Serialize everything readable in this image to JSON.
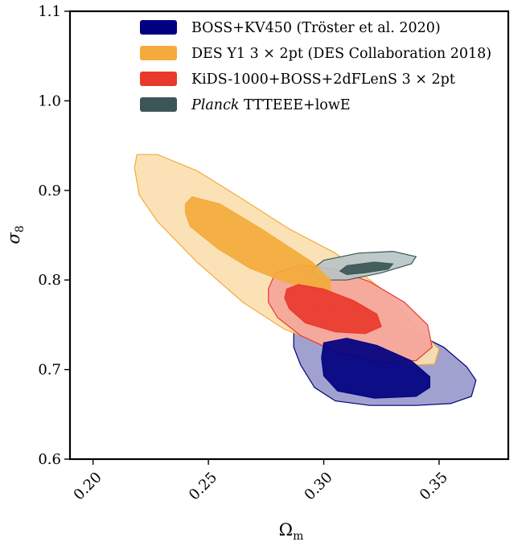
{
  "chart_data": {
    "type": "contour",
    "xlabel_main": "Ω",
    "xlabel_sub": "m",
    "ylabel_main": "σ",
    "ylabel_sub": "8",
    "xlim": [
      0.19,
      0.38
    ],
    "ylim": [
      0.6,
      1.1
    ],
    "xticks": [
      {
        "value": 0.2,
        "label": "0.20"
      },
      {
        "value": 0.25,
        "label": "0.25"
      },
      {
        "value": 0.3,
        "label": "0.30"
      },
      {
        "value": 0.35,
        "label": "0.35"
      }
    ],
    "yticks": [
      {
        "value": 0.6,
        "label": "0.6"
      },
      {
        "value": 0.7,
        "label": "0.7"
      },
      {
        "value": 0.8,
        "label": "0.8"
      },
      {
        "value": 0.9,
        "label": "0.9"
      },
      {
        "value": 1.0,
        "label": "1.0"
      },
      {
        "value": 1.1,
        "label": "1.1"
      }
    ],
    "legend_position": "top-right",
    "series": [
      {
        "name": "BOSS+KV450 (Tröster et al. 2020)",
        "name_italic": "",
        "color": "#000080",
        "outer_color": "#9999cc",
        "outer": [
          [
            0.287,
            0.74
          ],
          [
            0.29,
            0.76
          ],
          [
            0.3,
            0.77
          ],
          [
            0.31,
            0.768
          ],
          [
            0.322,
            0.757
          ],
          [
            0.338,
            0.743
          ],
          [
            0.352,
            0.725
          ],
          [
            0.362,
            0.703
          ],
          [
            0.366,
            0.688
          ],
          [
            0.364,
            0.67
          ],
          [
            0.355,
            0.662
          ],
          [
            0.34,
            0.66
          ],
          [
            0.32,
            0.66
          ],
          [
            0.305,
            0.665
          ],
          [
            0.296,
            0.68
          ],
          [
            0.29,
            0.705
          ],
          [
            0.287,
            0.725
          ]
        ],
        "inner": [
          [
            0.3,
            0.73
          ],
          [
            0.31,
            0.735
          ],
          [
            0.323,
            0.727
          ],
          [
            0.338,
            0.71
          ],
          [
            0.346,
            0.692
          ],
          [
            0.346,
            0.68
          ],
          [
            0.34,
            0.67
          ],
          [
            0.322,
            0.668
          ],
          [
            0.306,
            0.676
          ],
          [
            0.3,
            0.693
          ],
          [
            0.299,
            0.713
          ]
        ]
      },
      {
        "name": "DES Y1 3 × 2pt (DES Collaboration 2018)",
        "name_italic": "",
        "color": "#f4ab3c",
        "outer_color": "#fbe0b0",
        "outer": [
          [
            0.219,
            0.94
          ],
          [
            0.228,
            0.94
          ],
          [
            0.245,
            0.922
          ],
          [
            0.265,
            0.89
          ],
          [
            0.285,
            0.857
          ],
          [
            0.305,
            0.83
          ],
          [
            0.325,
            0.79
          ],
          [
            0.342,
            0.743
          ],
          [
            0.35,
            0.723
          ],
          [
            0.348,
            0.706
          ],
          [
            0.338,
            0.705
          ],
          [
            0.322,
            0.715
          ],
          [
            0.3,
            0.728
          ],
          [
            0.283,
            0.745
          ],
          [
            0.265,
            0.775
          ],
          [
            0.245,
            0.82
          ],
          [
            0.228,
            0.865
          ],
          [
            0.22,
            0.895
          ],
          [
            0.218,
            0.925
          ]
        ],
        "inner": [
          [
            0.24,
            0.885
          ],
          [
            0.243,
            0.893
          ],
          [
            0.255,
            0.885
          ],
          [
            0.273,
            0.857
          ],
          [
            0.295,
            0.82
          ],
          [
            0.303,
            0.8
          ],
          [
            0.303,
            0.788
          ],
          [
            0.295,
            0.79
          ],
          [
            0.283,
            0.798
          ],
          [
            0.268,
            0.813
          ],
          [
            0.254,
            0.835
          ],
          [
            0.242,
            0.86
          ],
          [
            0.24,
            0.875
          ]
        ]
      },
      {
        "name": "KiDS-1000+BOSS+2dFLenS 3 × 2pt",
        "name_italic": "",
        "color": "#e8392c",
        "outer_color": "#f4a59a",
        "outer": [
          [
            0.276,
            0.79
          ],
          [
            0.279,
            0.808
          ],
          [
            0.29,
            0.817
          ],
          [
            0.305,
            0.812
          ],
          [
            0.32,
            0.798
          ],
          [
            0.335,
            0.775
          ],
          [
            0.345,
            0.75
          ],
          [
            0.347,
            0.725
          ],
          [
            0.34,
            0.71
          ],
          [
            0.325,
            0.708
          ],
          [
            0.305,
            0.72
          ],
          [
            0.29,
            0.738
          ],
          [
            0.28,
            0.758
          ],
          [
            0.276,
            0.775
          ]
        ],
        "inner": [
          [
            0.284,
            0.79
          ],
          [
            0.289,
            0.795
          ],
          [
            0.3,
            0.79
          ],
          [
            0.313,
            0.777
          ],
          [
            0.323,
            0.762
          ],
          [
            0.325,
            0.748
          ],
          [
            0.318,
            0.74
          ],
          [
            0.305,
            0.742
          ],
          [
            0.292,
            0.752
          ],
          [
            0.285,
            0.768
          ],
          [
            0.283,
            0.78
          ]
        ]
      },
      {
        "name": " TTTEEE+lowE",
        "name_italic": "Planck",
        "color": "#3b5656",
        "outer_color": "#b9c4c4",
        "outer": [
          [
            0.295,
            0.812
          ],
          [
            0.3,
            0.822
          ],
          [
            0.315,
            0.83
          ],
          [
            0.33,
            0.832
          ],
          [
            0.34,
            0.826
          ],
          [
            0.338,
            0.818
          ],
          [
            0.325,
            0.808
          ],
          [
            0.31,
            0.8
          ],
          [
            0.3,
            0.8
          ],
          [
            0.295,
            0.805
          ]
        ],
        "inner": [
          [
            0.307,
            0.81
          ],
          [
            0.31,
            0.816
          ],
          [
            0.322,
            0.82
          ],
          [
            0.33,
            0.818
          ],
          [
            0.328,
            0.812
          ],
          [
            0.318,
            0.808
          ],
          [
            0.31,
            0.806
          ]
        ]
      }
    ]
  }
}
